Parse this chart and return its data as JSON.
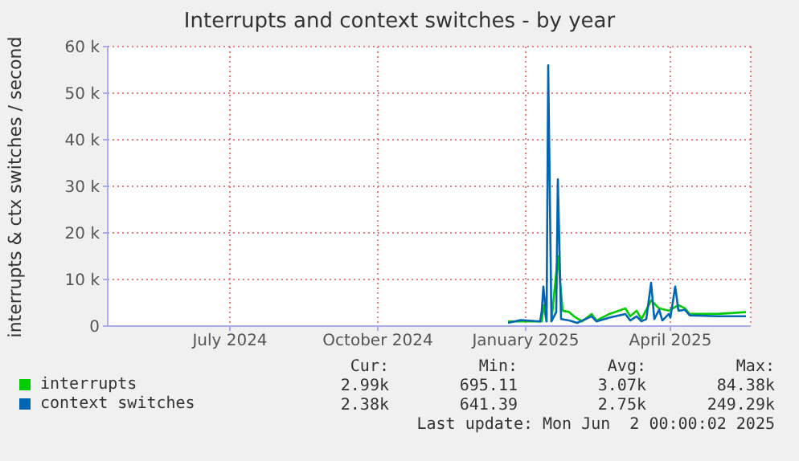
{
  "chart_data": {
    "type": "line",
    "title": "Interrupts and context switches - by year",
    "ylabel": "interrupts & ctx switches / second",
    "xlim": [
      "2024-04-16",
      "2025-05-21"
    ],
    "xticks": [
      {
        "value": "2024-07-01",
        "label": "July 2024"
      },
      {
        "value": "2024-10-01",
        "label": "October 2024"
      },
      {
        "value": "2025-01-01",
        "label": "January 2025"
      },
      {
        "value": "2025-04-01",
        "label": "April 2025"
      }
    ],
    "ylim": [
      0,
      60000
    ],
    "yticks": [
      0,
      {
        "value": 10000,
        "label": "10 k"
      },
      {
        "value": 20000,
        "label": "20 k"
      },
      {
        "value": 30000,
        "label": "30 k"
      },
      {
        "value": 40000,
        "label": "40 k"
      },
      {
        "value": 50000,
        "label": "50 k"
      },
      {
        "value": 60000,
        "label": "60 k"
      }
    ],
    "grid": true,
    "legend": "bottom",
    "marker": "none",
    "line_style": "solid",
    "series": [
      {
        "name": "interrupts",
        "color": "#00cc00",
        "x": [
          "2024-12-21",
          "2024-12-29",
          "2025-01-11",
          "2025-01-12",
          "2025-01-14",
          "2025-01-15",
          "2025-01-17",
          "2025-01-21",
          "2025-01-24",
          "2025-01-28",
          "2025-01-31",
          "2025-02-05",
          "2025-02-11",
          "2025-02-14",
          "2025-02-22",
          "2025-03-04",
          "2025-03-07",
          "2025-03-11",
          "2025-03-14",
          "2025-03-20",
          "2025-03-25",
          "2025-03-31",
          "2025-04-06",
          "2025-04-10",
          "2025-04-13",
          "2025-04-30",
          "2025-05-18"
        ],
        "values": [
          1000,
          1000,
          1000,
          4500,
          1000,
          null,
          1000,
          15000,
          3300,
          3000,
          2100,
          1000,
          2600,
          1200,
          2600,
          3800,
          2100,
          3300,
          1500,
          5500,
          3800,
          3300,
          4500,
          3800,
          2600,
          2600,
          3000
        ]
      },
      {
        "name": "context switches",
        "color": "#0066b3",
        "x": [
          "2024-12-21",
          "2024-12-29",
          "2025-01-10",
          "2025-01-11",
          "2025-01-12",
          "2025-01-14",
          "2025-01-15",
          "2025-01-17",
          "2025-01-20",
          "2025-01-21",
          "2025-01-23",
          "2025-01-28",
          "2025-02-02",
          "2025-02-11",
          "2025-02-14",
          "2025-02-22",
          "2025-03-04",
          "2025-03-07",
          "2025-03-11",
          "2025-03-14",
          "2025-03-17",
          "2025-03-20",
          "2025-03-22",
          "2025-03-25",
          "2025-03-27",
          "2025-03-31",
          "2025-04-01",
          "2025-04-04",
          "2025-04-06",
          "2025-04-10",
          "2025-04-13",
          "2025-04-30",
          "2025-05-18"
        ],
        "values": [
          700,
          1300,
          1000,
          3300,
          8500,
          1000,
          56000,
          1000,
          3000,
          31500,
          1500,
          1200,
          700,
          2100,
          1000,
          1800,
          2600,
          1200,
          2100,
          1000,
          1500,
          9300,
          1500,
          3500,
          1200,
          2600,
          1800,
          8500,
          3300,
          3500,
          2300,
          2100,
          2100
        ]
      }
    ],
    "annotations": [
      "Cur:",
      "Min:",
      "Avg:",
      "Max:",
      "2.99k",
      "695.11",
      "3.07k",
      "84.38k",
      "2.38k",
      "641.39",
      "2.75k",
      "249.29k",
      "Last update: Mon Jun  2 00:00:02 2025"
    ]
  }
}
